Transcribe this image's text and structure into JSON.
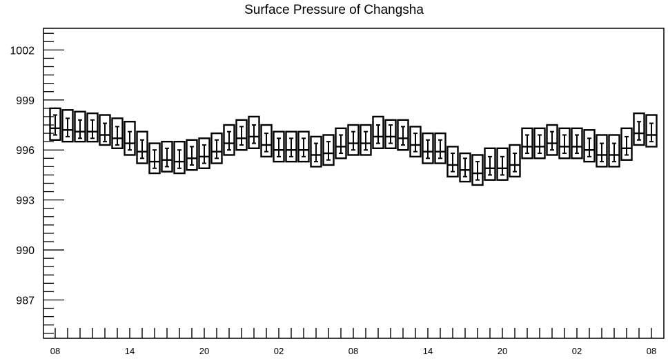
{
  "chart_data": {
    "type": "box",
    "title": "Surface Pressure of Changsha",
    "xlabel": "",
    "ylabel": "",
    "ylim": [
      984.7,
      1003.3
    ],
    "y_ticks": [
      987,
      990,
      993,
      996,
      999,
      1002
    ],
    "x_tick_labels": [
      "08",
      "14",
      "20",
      "02",
      "08",
      "14",
      "20",
      "02",
      "08"
    ],
    "x_tick_label_index": [
      0,
      6,
      12,
      18,
      24,
      30,
      36,
      42,
      48
    ],
    "grid": false,
    "series": [
      {
        "x_hours": [
          0,
          1,
          2,
          3,
          4,
          5,
          6,
          7,
          8,
          9,
          10,
          11,
          12,
          13,
          14,
          15,
          16,
          17,
          18,
          19,
          20,
          21,
          22,
          23,
          24,
          25,
          26,
          27,
          28,
          29,
          30,
          31,
          32,
          33,
          34,
          35,
          36,
          37,
          38,
          39,
          40,
          41,
          42,
          43,
          44,
          45,
          46,
          47,
          48
        ],
        "box_top": [
          998.5,
          998.4,
          998.3,
          998.2,
          998.1,
          997.9,
          997.7,
          997.1,
          996.4,
          996.5,
          996.5,
          996.6,
          996.7,
          997.0,
          997.5,
          997.8,
          998.0,
          997.5,
          997.1,
          997.1,
          997.1,
          996.8,
          996.9,
          997.3,
          997.5,
          997.5,
          998.0,
          997.8,
          997.8,
          997.4,
          997.0,
          997.0,
          996.2,
          995.8,
          995.7,
          996.1,
          996.1,
          996.3,
          997.3,
          997.3,
          997.5,
          997.3,
          997.3,
          997.2,
          996.9,
          996.9,
          997.3,
          998.2,
          998.1
        ],
        "box_bottom": [
          996.6,
          996.5,
          996.5,
          996.5,
          996.3,
          996.1,
          995.7,
          995.2,
          994.6,
          994.7,
          994.6,
          994.8,
          994.9,
          995.2,
          995.7,
          996.0,
          996.1,
          995.6,
          995.3,
          995.3,
          995.3,
          995.0,
          995.1,
          995.5,
          995.7,
          995.7,
          996.1,
          996.1,
          996.0,
          995.6,
          995.2,
          995.2,
          994.4,
          994.1,
          993.9,
          994.2,
          994.2,
          994.4,
          995.5,
          995.5,
          995.7,
          995.5,
          995.5,
          995.3,
          995.0,
          995.0,
          995.4,
          996.3,
          996.2
        ],
        "median": [
          997.3,
          997.2,
          997.1,
          997.1,
          996.9,
          996.7,
          996.4,
          995.9,
          995.3,
          995.4,
          995.3,
          995.5,
          995.6,
          995.9,
          996.4,
          996.7,
          996.8,
          996.3,
          996.0,
          996.0,
          996.0,
          995.7,
          995.8,
          996.2,
          996.4,
          996.4,
          996.8,
          996.8,
          996.7,
          996.3,
          995.9,
          995.9,
          995.1,
          994.8,
          994.6,
          994.9,
          994.9,
          995.1,
          996.2,
          996.2,
          996.4,
          996.2,
          996.2,
          996.0,
          995.7,
          995.7,
          996.1,
          997.0,
          996.9
        ],
        "whisker_top": [
          998.1,
          997.9,
          997.8,
          997.8,
          997.6,
          997.4,
          997.1,
          996.6,
          996.0,
          996.1,
          996.0,
          996.2,
          996.3,
          996.6,
          997.1,
          997.4,
          997.5,
          997.0,
          996.7,
          996.7,
          996.7,
          996.4,
          996.5,
          996.9,
          997.1,
          997.1,
          997.5,
          997.5,
          997.4,
          997.0,
          996.6,
          996.6,
          995.8,
          995.5,
          995.3,
          995.6,
          995.6,
          995.8,
          996.9,
          996.9,
          997.1,
          996.9,
          996.9,
          996.7,
          996.4,
          996.4,
          996.8,
          997.7,
          997.6
        ],
        "whisker_bottom": [
          996.9,
          996.8,
          996.7,
          996.7,
          996.5,
          996.3,
          996.0,
          995.5,
          994.9,
          995.0,
          994.9,
          995.1,
          995.2,
          995.5,
          996.0,
          996.3,
          996.4,
          995.9,
          995.6,
          995.6,
          995.6,
          995.3,
          995.4,
          995.8,
          996.0,
          996.0,
          996.4,
          996.4,
          996.3,
          995.9,
          995.5,
          995.5,
          994.7,
          994.4,
          994.2,
          994.5,
          994.5,
          994.7,
          995.8,
          995.8,
          996.0,
          995.8,
          995.8,
          995.6,
          995.3,
          995.3,
          995.7,
          996.6,
          996.5
        ]
      }
    ]
  }
}
